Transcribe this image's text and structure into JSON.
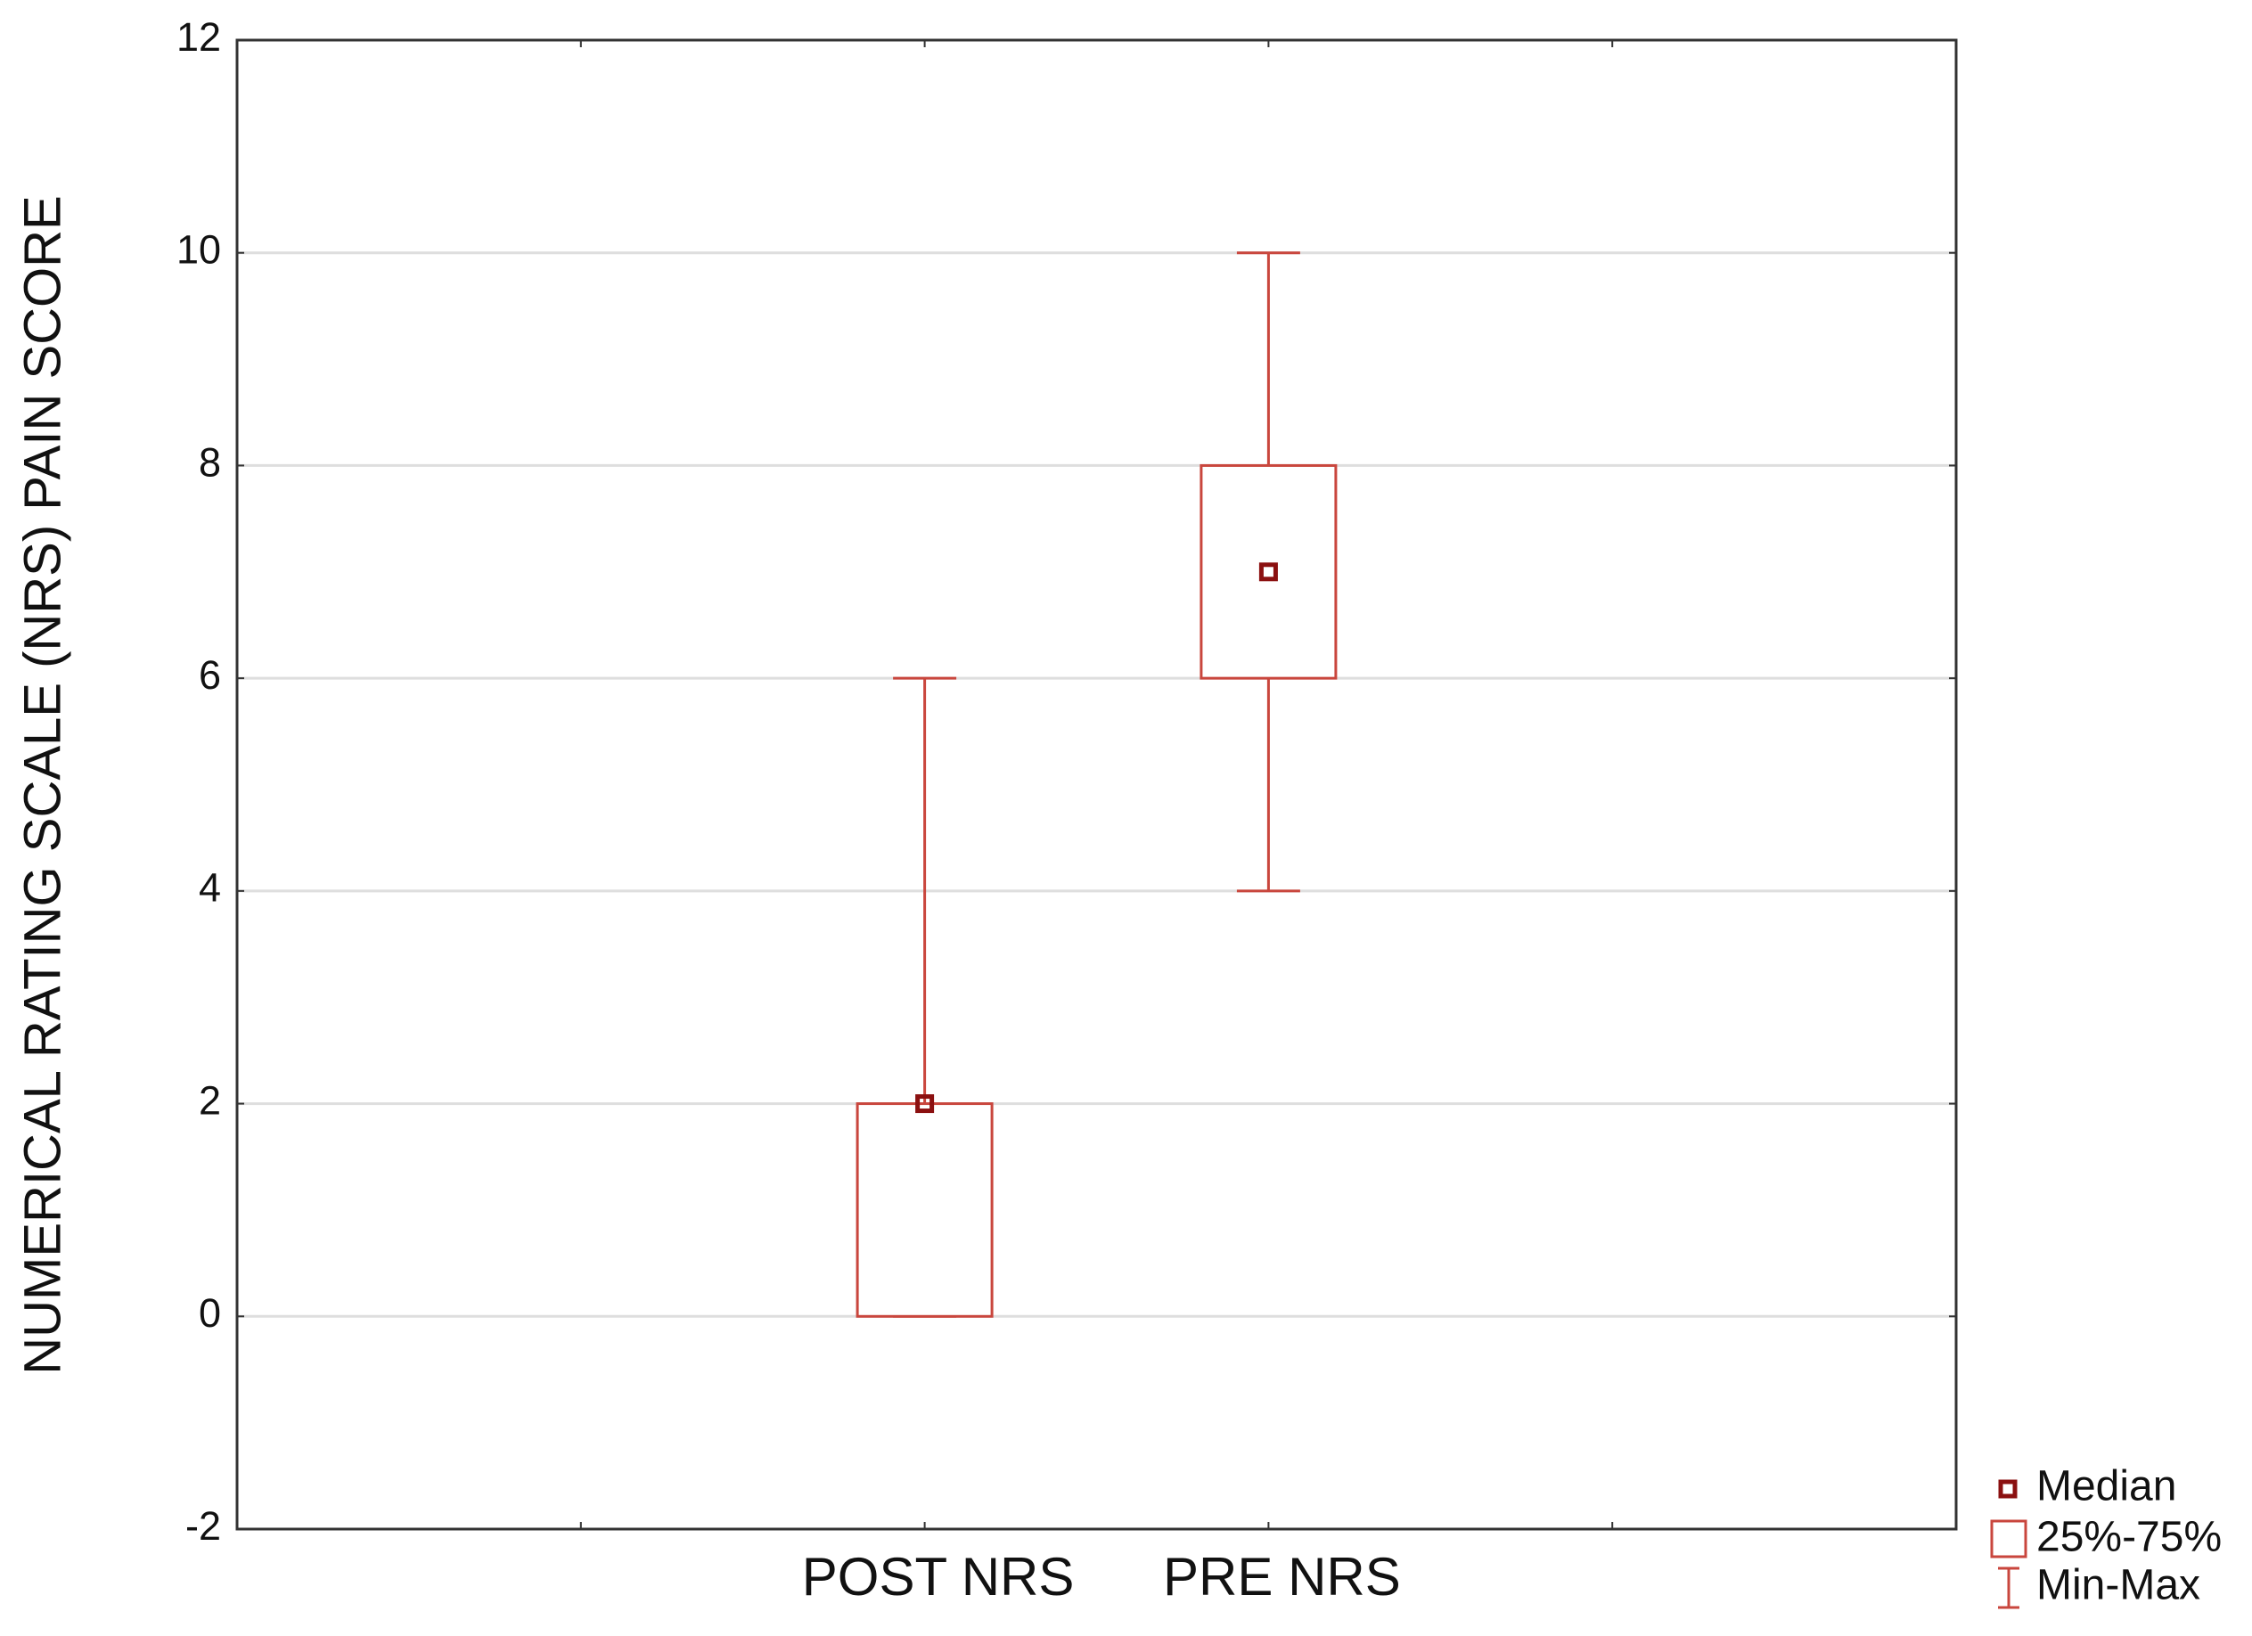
{
  "chart_data": {
    "type": "box",
    "y_label": "NUMERICAL RATING SCALE (NRS) PAIN SCORE",
    "categories": [
      "POST NRS",
      "PRE NRS"
    ],
    "min": [
      0,
      4
    ],
    "q1": [
      0,
      6
    ],
    "median": [
      2,
      7
    ],
    "q3": [
      2,
      8
    ],
    "max": [
      6,
      10
    ],
    "color": "#c9463d",
    "median_color": "#8b1010",
    "legend": [
      "Median",
      "25%-75%",
      "Min-Max"
    ],
    "ylim": [
      -2,
      12
    ],
    "yticks": [
      -2,
      0,
      2,
      4,
      6,
      8,
      10,
      12
    ],
    "grid": true
  }
}
